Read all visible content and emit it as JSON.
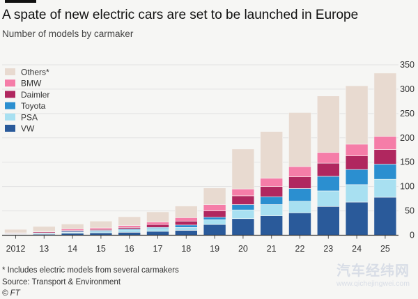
{
  "title": "A spate of new electric cars are set to be launched in Europe",
  "subtitle": "Number of models by carmaker",
  "footnote": "* Includes electric models from several carmakers",
  "source": "Source: Transport & Environment",
  "credit": "© FT",
  "watermark": {
    "text": "汽车经纬网",
    "url": "www.qichejingwei.com"
  },
  "colors": {
    "VW": "#2a5a9a",
    "PSA": "#a8e0f1",
    "Toyota": "#2b8fd0",
    "Daimler": "#b0275f",
    "BMW": "#f57da8",
    "Others*": "#e8dad0"
  },
  "chart_data": {
    "type": "bar",
    "stacked": true,
    "categories": [
      "2012",
      "13",
      "14",
      "15",
      "16",
      "17",
      "18",
      "19",
      "20",
      "21",
      "22",
      "23",
      "24",
      "25"
    ],
    "series": [
      {
        "name": "VW",
        "values": [
          1,
          2,
          4,
          5,
          6,
          8,
          10,
          22,
          34,
          40,
          46,
          59,
          68,
          78
        ]
      },
      {
        "name": "PSA",
        "values": [
          1,
          2,
          2,
          3,
          5,
          6,
          6,
          10,
          18,
          23,
          24,
          32,
          36,
          37
        ]
      },
      {
        "name": "Toyota",
        "values": [
          1,
          1,
          2,
          2,
          2,
          2,
          5,
          5,
          11,
          16,
          26,
          30,
          31,
          31
        ]
      },
      {
        "name": "Daimler",
        "values": [
          1,
          2,
          2,
          2,
          3,
          6,
          8,
          13,
          18,
          21,
          24,
          27,
          28,
          30
        ]
      },
      {
        "name": "BMW",
        "values": [
          1,
          1,
          3,
          3,
          4,
          5,
          7,
          13,
          14,
          17,
          21,
          22,
          24,
          27
        ]
      },
      {
        "name": "Others*",
        "values": [
          7,
          10,
          10,
          14,
          18,
          21,
          24,
          34,
          82,
          96,
          111,
          116,
          120,
          130
        ]
      }
    ],
    "legend": [
      "Others*",
      "BMW",
      "Daimler",
      "Toyota",
      "PSA",
      "VW"
    ],
    "legend_position": "top-left",
    "yticks": [
      0,
      50,
      100,
      150,
      200,
      250,
      300,
      350
    ],
    "ylim": [
      0,
      350
    ],
    "y_axis_side": "right",
    "xlabel": "",
    "ylabel": ""
  }
}
